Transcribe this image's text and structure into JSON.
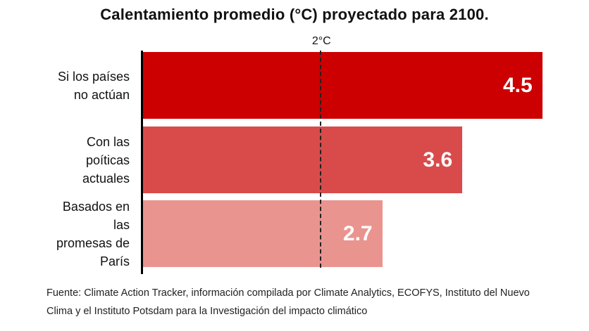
{
  "chart_data": {
    "type": "bar",
    "orientation": "horizontal",
    "title": "Calentamiento promedio (°C) proyectado para 2100.",
    "categories": [
      "Si los países no actúan",
      "Con las poíticas actuales",
      "Basados en las promesas de París"
    ],
    "category_lines": [
      [
        "Si los países",
        "no actúan"
      ],
      [
        "Con las",
        "poíticas",
        "actuales"
      ],
      [
        "Basados en",
        "las",
        "promesas de",
        "París"
      ]
    ],
    "values": [
      4.5,
      3.6,
      2.7
    ],
    "value_labels": [
      "4.5",
      "3.6",
      "2.7"
    ],
    "colors": [
      "#cc0000",
      "#d94b4b",
      "#ea948f"
    ],
    "xlim": [
      0,
      4.55
    ],
    "reference_line": {
      "value": 2,
      "label": "2°C",
      "style": "dashed"
    },
    "grid": false
  },
  "source": "Fuente: Climate Action Tracker, información compilada por Climate Analytics, ECOFYS, Instituto del Nuevo Clima y el Instituto Potsdam para la Investigación del impacto climático"
}
